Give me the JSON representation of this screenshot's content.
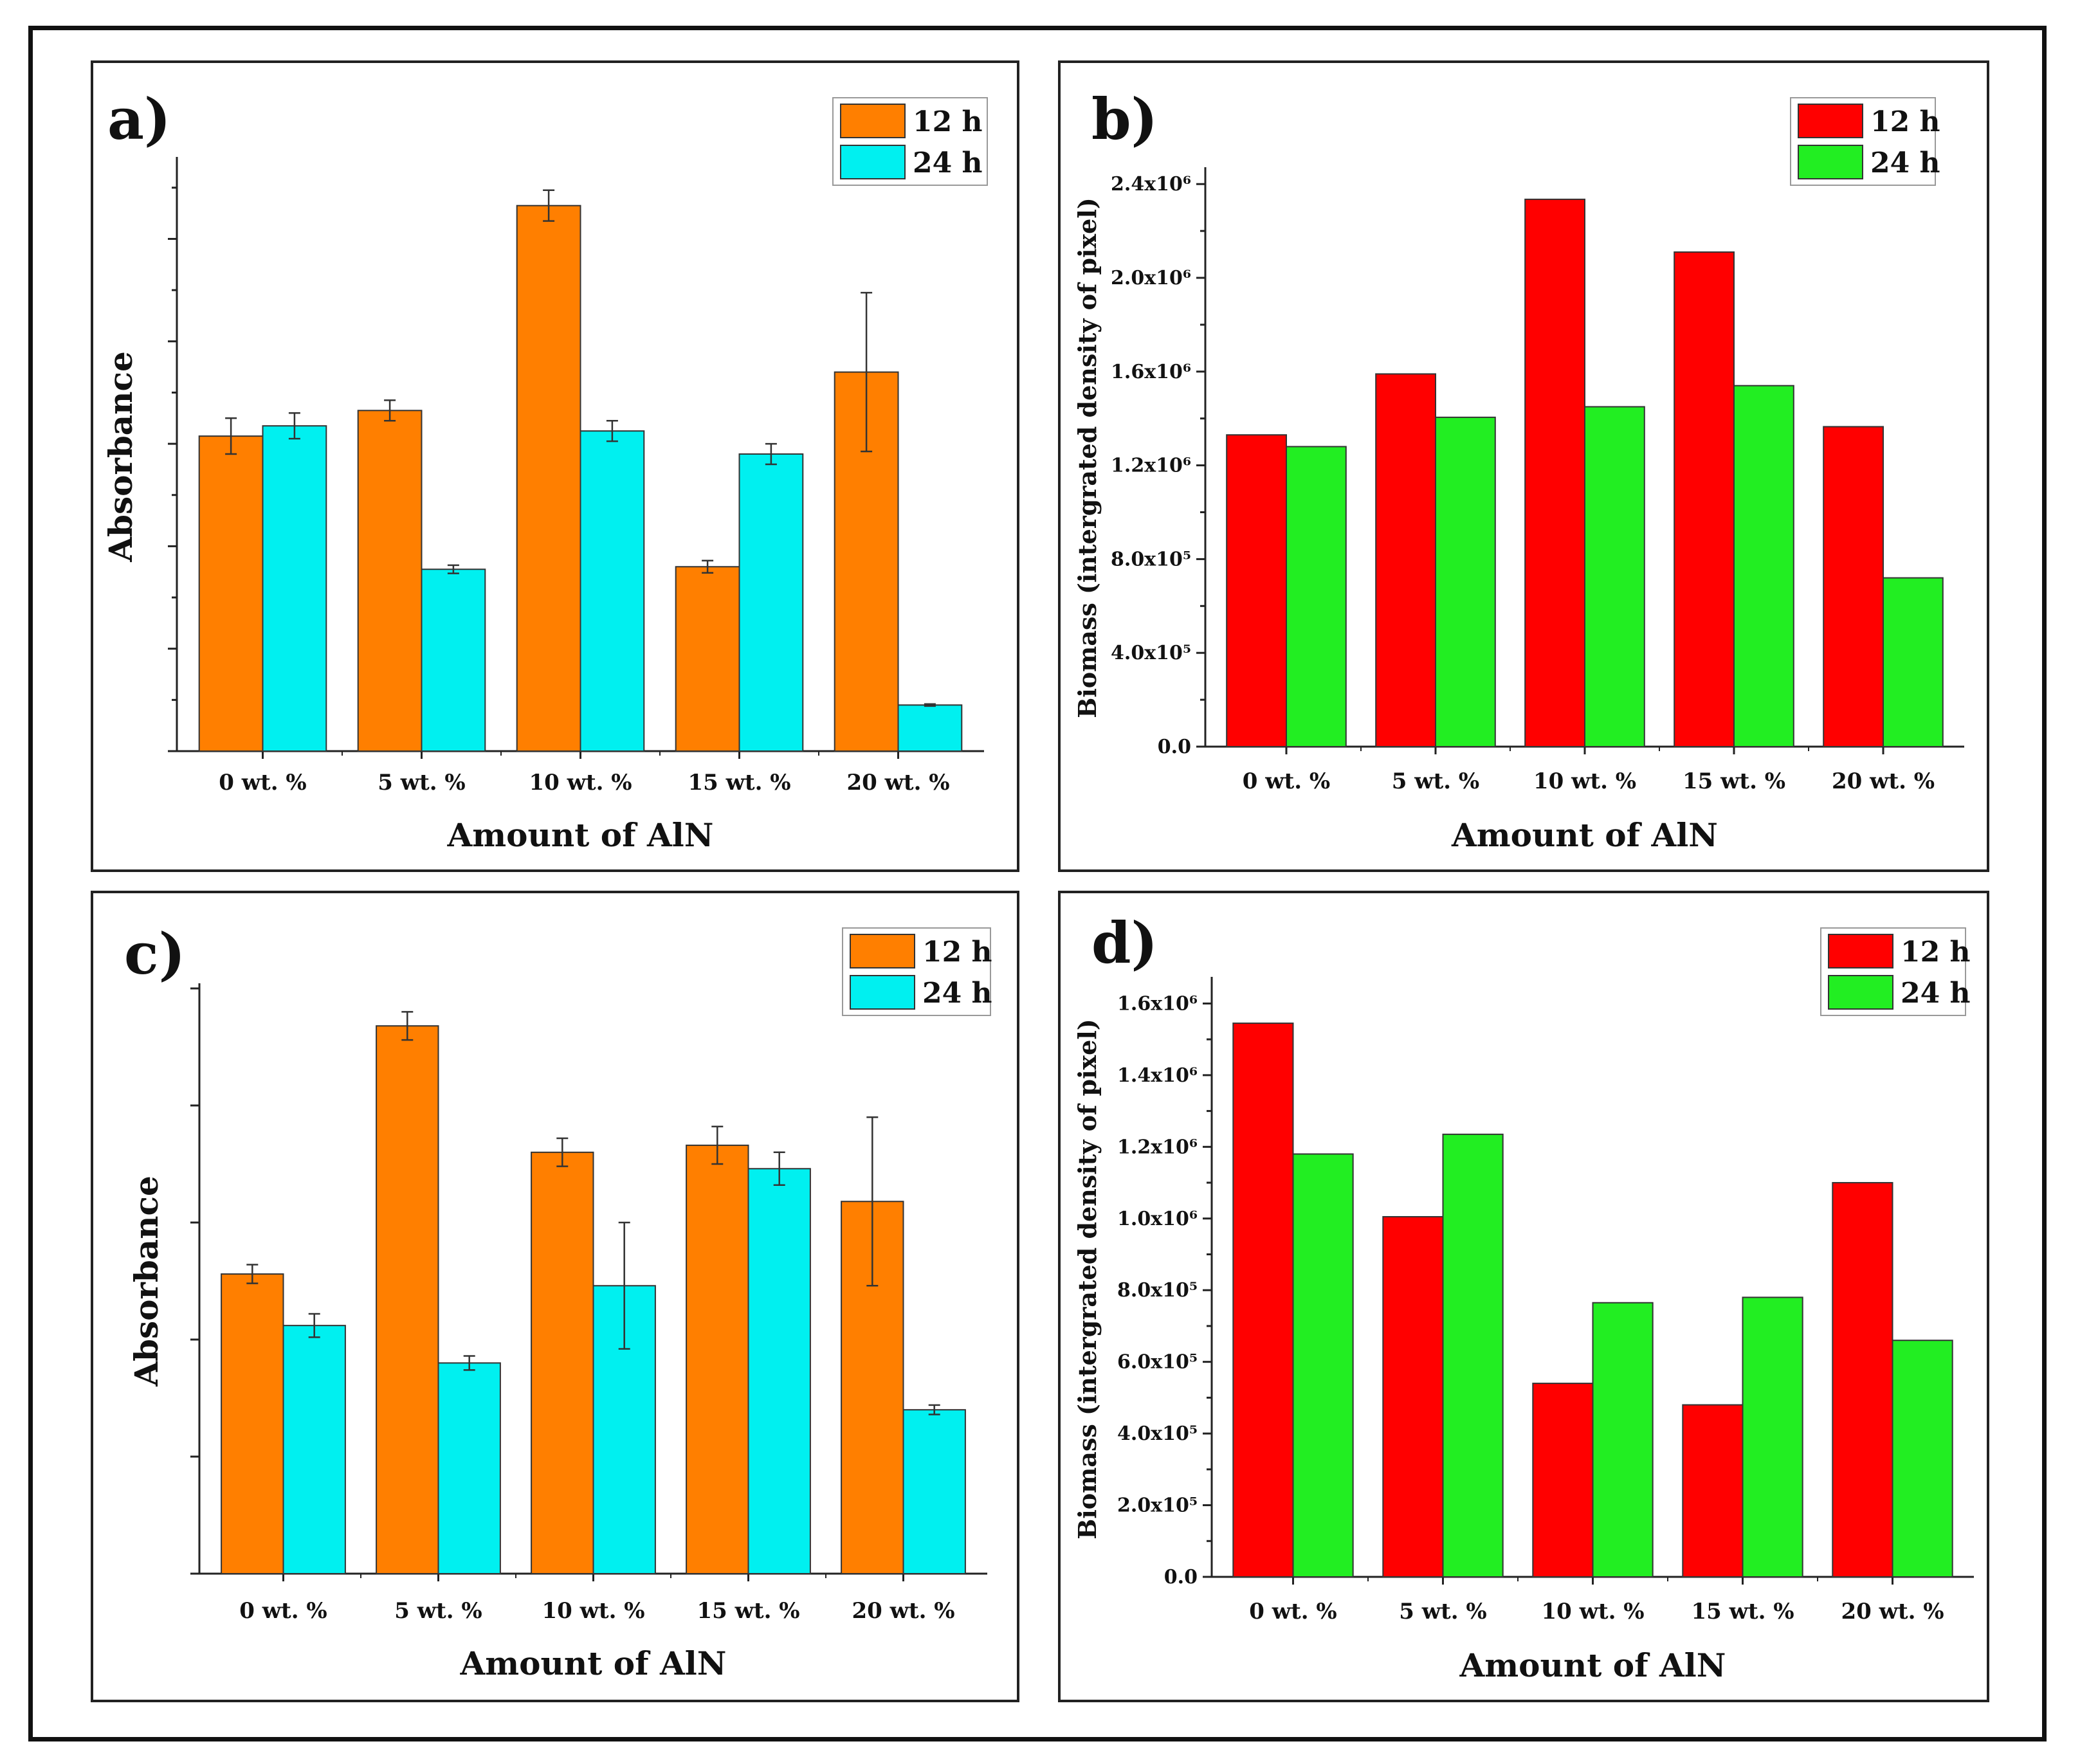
{
  "colors": {
    "a_12h": "#ff7f00",
    "a_24h": "#00f0f0",
    "b_12h": "#ff0000",
    "b_24h": "#22ee22"
  },
  "chart_data": [
    {
      "id": "a",
      "panel_label": "a)",
      "type": "bar",
      "title": "",
      "xlabel": "Amount of AlN",
      "ylabel": "Absorbance",
      "categories": [
        "0 wt. %",
        "5 wt. %",
        "10 wt. %",
        "15 wt. %",
        "20 wt. %"
      ],
      "ylim": [
        0,
        11.5
      ],
      "ymajor": 2,
      "yminor": 1,
      "show_tick_labels": false,
      "legend_position": "top-right",
      "series": [
        {
          "name": "12 h",
          "values": [
            6.15,
            6.65,
            10.65,
            3.6,
            7.4
          ],
          "errors": [
            0.35,
            0.2,
            0.3,
            0.12,
            1.55
          ]
        },
        {
          "name": "24 h",
          "values": [
            6.35,
            3.55,
            6.25,
            5.8,
            0.9
          ],
          "errors": [
            0.25,
            0.08,
            0.2,
            0.2,
            0.02
          ]
        }
      ]
    },
    {
      "id": "b",
      "panel_label": "b)",
      "type": "bar",
      "title": "",
      "xlabel": "Amount of AlN",
      "ylabel": "Biomass (intergrated density of pixel)",
      "categories": [
        "0 wt. %",
        "5 wt. %",
        "10 wt. %",
        "15 wt. %",
        "20 wt. %"
      ],
      "ylim": [
        0,
        2450000
      ],
      "ymajor": 400000,
      "yminor": 200000,
      "show_tick_labels": true,
      "yticks": [
        {
          "value": 0,
          "label": "0.0"
        },
        {
          "value": 400000,
          "label": "4.0x10⁵"
        },
        {
          "value": 800000,
          "label": "8.0x10⁵"
        },
        {
          "value": 1200000,
          "label": "1.2x10⁶"
        },
        {
          "value": 1600000,
          "label": "1.6x10⁶"
        },
        {
          "value": 2000000,
          "label": "2.0x10⁶"
        },
        {
          "value": 2400000,
          "label": "2.4x10⁶"
        }
      ],
      "legend_position": "top-right",
      "series": [
        {
          "name": "12 h",
          "values": [
            1330000,
            1590000,
            2335000,
            2110000,
            1365000
          ]
        },
        {
          "name": "24 h",
          "values": [
            1280000,
            1405000,
            1450000,
            1540000,
            720000
          ]
        }
      ]
    },
    {
      "id": "c",
      "panel_label": "c)",
      "type": "bar",
      "title": "",
      "xlabel": "Amount of AlN",
      "ylabel": "Absorbance",
      "categories": [
        "0 wt. %",
        "5 wt. %",
        "10 wt. %",
        "15 wt. %",
        "20 wt. %"
      ],
      "ylim": [
        0,
        2.5
      ],
      "ymajor": 0.5,
      "yminor": 0.5,
      "show_tick_labels": false,
      "legend_position": "top-right",
      "series": [
        {
          "name": "12 h",
          "values": [
            1.28,
            2.34,
            1.8,
            1.83,
            1.59
          ],
          "errors": [
            0.04,
            0.06,
            0.06,
            0.08,
            0.36
          ]
        },
        {
          "name": "24 h",
          "values": [
            1.06,
            0.9,
            1.23,
            1.73,
            0.7
          ],
          "errors": [
            0.05,
            0.03,
            0.27,
            0.07,
            0.02
          ]
        }
      ]
    },
    {
      "id": "d",
      "panel_label": "d)",
      "type": "bar",
      "title": "",
      "xlabel": "Amount of AlN",
      "ylabel": "Biomass (intergrated density of pixel)",
      "categories": [
        "0 wt. %",
        "5 wt. %",
        "10 wt. %",
        "15 wt. %",
        "20 wt. %"
      ],
      "ylim": [
        0,
        1660000
      ],
      "ymajor": 200000,
      "yminor": 100000,
      "show_tick_labels": true,
      "yticks": [
        {
          "value": 0,
          "label": "0.0"
        },
        {
          "value": 200000,
          "label": "2.0x10⁵"
        },
        {
          "value": 400000,
          "label": "4.0x10⁵"
        },
        {
          "value": 600000,
          "label": "6.0x10⁵"
        },
        {
          "value": 800000,
          "label": "8.0x10⁵"
        },
        {
          "value": 1000000,
          "label": "1.0x10⁶"
        },
        {
          "value": 1200000,
          "label": "1.2x10⁶"
        },
        {
          "value": 1400000,
          "label": "1.4x10⁶"
        },
        {
          "value": 1600000,
          "label": "1.6x10⁶"
        }
      ],
      "legend_position": "top-right",
      "series": [
        {
          "name": "12 h",
          "values": [
            1545000,
            1005000,
            540000,
            480000,
            1100000
          ]
        },
        {
          "name": "24 h",
          "values": [
            1180000,
            1235000,
            765000,
            780000,
            660000
          ]
        }
      ]
    }
  ]
}
